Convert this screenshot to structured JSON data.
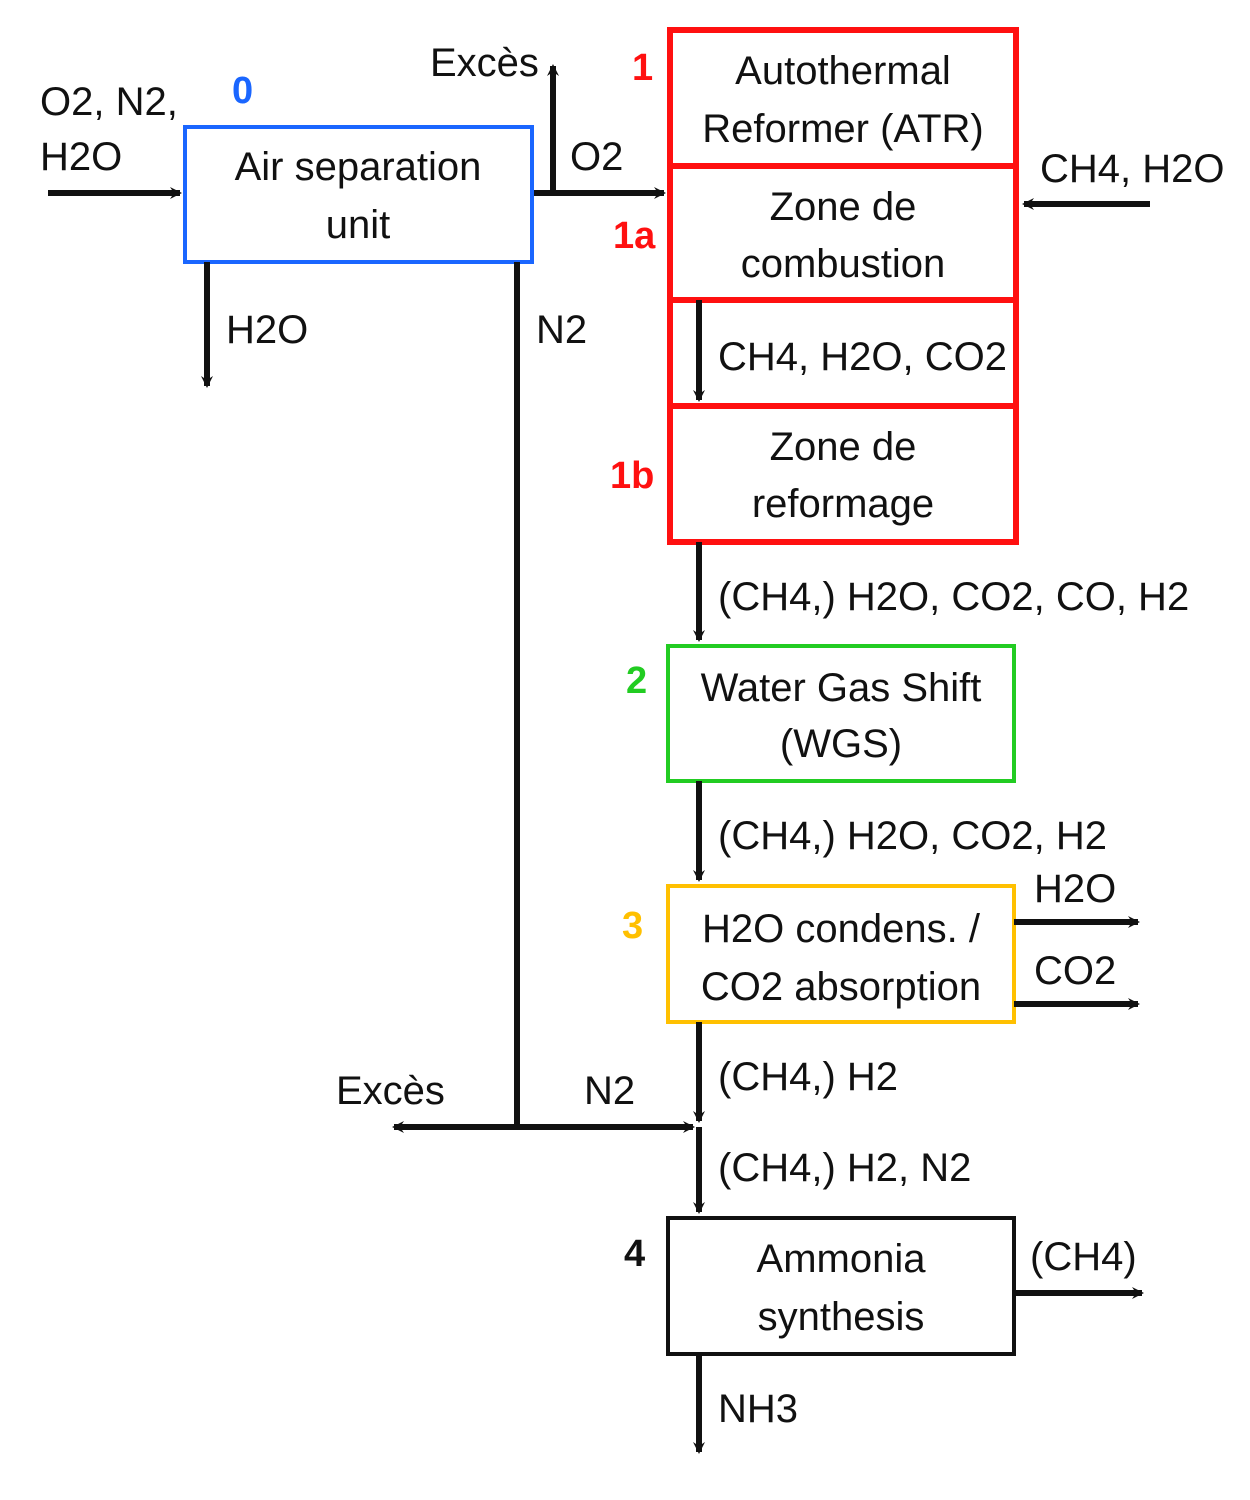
{
  "colors": {
    "asu": "#1a66ff",
    "atr": "#ff1010",
    "wgs": "#22cc22",
    "h2o_co2": "#ffc000",
    "ammonia": "#111111",
    "arrow": "#111111"
  },
  "inputs": {
    "asu_feed_line1": "O2, N2,",
    "asu_feed_line2": "H2O",
    "atr_feed": "CH4, H2O"
  },
  "units": {
    "asu": {
      "number": "0",
      "line1": "Air separation",
      "line2": "unit"
    },
    "atr": {
      "number": "1",
      "line1": "Autothermal",
      "line2": "Reformer (ATR)"
    },
    "combustion": {
      "number": "1a",
      "line1": "Zone de",
      "line2": "combustion"
    },
    "reforming": {
      "number": "1b",
      "line1": "Zone de",
      "line2": "reformage"
    },
    "wgs": {
      "number": "2",
      "line1": "Water Gas Shift",
      "line2": "(WGS)"
    },
    "separation": {
      "number": "3",
      "line1": "H2O condens. /",
      "line2": "CO2 absorption"
    },
    "ammonia": {
      "number": "4",
      "line1": "Ammonia",
      "line2": "synthesis"
    }
  },
  "streams": {
    "asu_excess": "Excès",
    "asu_o2": "O2",
    "asu_h2o_out": "H2O",
    "asu_n2": "N2",
    "combustion_out": "CH4, H2O, CO2",
    "reforming_out": "(CH4,) H2O, CO2, CO, H2",
    "wgs_out": "(CH4,) H2O, CO2, H2",
    "sep_h2o_out": "H2O",
    "sep_co2_out": "CO2",
    "sep_out": "(CH4,) H2",
    "n2_excess": "Excès",
    "n2_feed": "N2",
    "mix_out": "(CH4,) H2, N2",
    "ammonia_purge": "(CH4)",
    "product": "NH3"
  }
}
